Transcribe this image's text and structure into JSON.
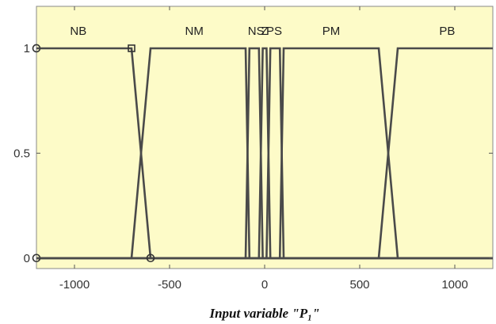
{
  "chart_data": {
    "type": "line",
    "title": "",
    "xlabel": "Input variable \"P₁\"",
    "ylabel": "",
    "xlim": [
      -1200,
      1200
    ],
    "ylim": [
      -0.05,
      1.2
    ],
    "x_ticks": [
      {
        "value": -1000,
        "label": "-1000"
      },
      {
        "value": -500,
        "label": "-500"
      },
      {
        "value": 0,
        "label": "0"
      },
      {
        "value": 500,
        "label": "500"
      },
      {
        "value": 1000,
        "label": "1000"
      }
    ],
    "y_ticks": [
      {
        "value": 0,
        "label": "0"
      },
      {
        "value": 0.5,
        "label": "0.5"
      },
      {
        "value": 1,
        "label": "1"
      }
    ],
    "colors": {
      "plot_background": "#fdfbc8",
      "line": "#4a4a4a",
      "axes": "#555555"
    },
    "series": [
      {
        "name": "NB",
        "label_x": -980,
        "x": [
          -1200,
          -700,
          -600,
          1200
        ],
        "y": [
          1,
          1,
          0,
          0
        ]
      },
      {
        "name": "NM",
        "label_x": -370,
        "x": [
          -1200,
          -700,
          -600,
          -100,
          -80,
          1200
        ],
        "y": [
          0,
          0,
          1,
          1,
          0,
          0
        ]
      },
      {
        "name": "NS",
        "label_x": -45,
        "x": [
          -1200,
          -100,
          -80,
          -30,
          -10,
          1200
        ],
        "y": [
          0,
          0,
          1,
          1,
          0,
          0
        ]
      },
      {
        "name": "ZE",
        "label_x": 0,
        "x": [
          -1200,
          -30,
          -10,
          10,
          30,
          1200
        ],
        "y": [
          0,
          0,
          1,
          1,
          0,
          0
        ],
        "label": "Z"
      },
      {
        "name": "PS",
        "label_x": 50,
        "x": [
          -1200,
          10,
          30,
          80,
          100,
          1200
        ],
        "y": [
          0,
          0,
          1,
          1,
          0,
          0
        ]
      },
      {
        "name": "PM",
        "label_x": 350,
        "x": [
          -1200,
          80,
          100,
          600,
          700,
          1200
        ],
        "y": [
          0,
          0,
          1,
          1,
          0,
          0
        ]
      },
      {
        "name": "PB",
        "label_x": 960,
        "x": [
          -1200,
          600,
          700,
          1200
        ],
        "y": [
          0,
          0,
          1,
          1
        ]
      }
    ],
    "markers": [
      {
        "shape": "circle",
        "x": -1200,
        "y": 1
      },
      {
        "shape": "square",
        "x": -700,
        "y": 1
      },
      {
        "shape": "circle",
        "x": -600,
        "y": 0
      },
      {
        "shape": "circle",
        "x": -1200,
        "y": 0
      }
    ],
    "grid": false,
    "legend": "none"
  }
}
